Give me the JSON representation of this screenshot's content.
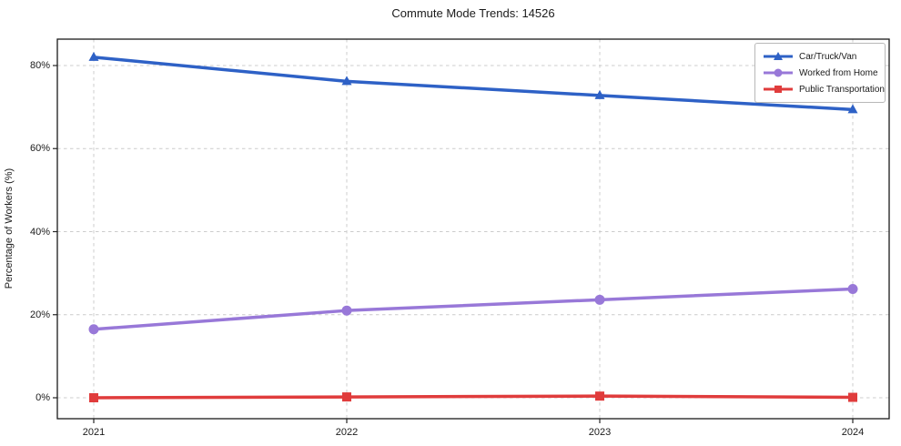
{
  "chart_data": {
    "type": "line",
    "title": "Commute Mode Trends: 14526",
    "xlabel": "",
    "ylabel": "Percentage of Workers (%)",
    "categories": [
      "2021",
      "2022",
      "2023",
      "2024"
    ],
    "y_ticks": [
      0,
      20,
      40,
      60,
      80
    ],
    "y_tick_labels": [
      "0%",
      "20%",
      "40%",
      "60%",
      "80%"
    ],
    "ylim": [
      -5,
      86.5
    ],
    "grid": true,
    "grid_style": "dashed",
    "legend_position": "upper-right",
    "series": [
      {
        "name": "Car/Truck/Van",
        "color": "#2e61c6",
        "marker": "triangle",
        "values": [
          82.0,
          76.2,
          72.8,
          69.4
        ]
      },
      {
        "name": "Worked from Home",
        "color": "#9878d8",
        "marker": "circle",
        "values": [
          16.5,
          21.0,
          23.6,
          26.2
        ]
      },
      {
        "name": "Public Transportation",
        "color": "#e03c3c",
        "marker": "square",
        "values": [
          0.0,
          0.2,
          0.4,
          0.1
        ]
      }
    ]
  }
}
